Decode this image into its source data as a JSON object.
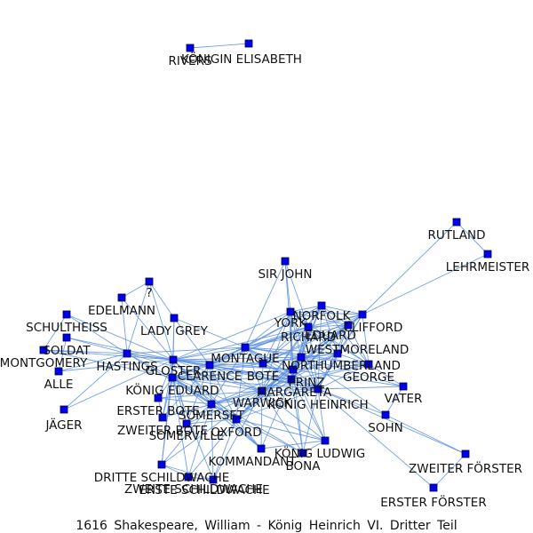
{
  "caption": "1616 Shakespeare, William - König Heinrich VI. Dritter Teil",
  "colors": {
    "edge": "#5b8fe0",
    "node": "#0000ee",
    "text": "#111111"
  },
  "nodes": [
    {
      "id": "RIVERS",
      "label": "RIVERS"
    },
    {
      "id": "KOENIGIN_ELISABETH",
      "label": "KÖNIGIN ELISABETH"
    },
    {
      "id": "RUTLAND",
      "label": "RUTLAND"
    },
    {
      "id": "LEHRMEISTER",
      "label": "LEHRMEISTER"
    },
    {
      "id": "SIR_JOHN",
      "label": "SIR JOHN"
    },
    {
      "id": "Q",
      "label": "?"
    },
    {
      "id": "EDELMANN",
      "label": "EDELMANN"
    },
    {
      "id": "SCHULTHEISS",
      "label": "SCHULTHEISS"
    },
    {
      "id": "LADY_GREY",
      "label": "LADY GREY"
    },
    {
      "id": "SOLDAT",
      "label": "SOLDAT"
    },
    {
      "id": "MONTGOMERY",
      "label": "MONTGOMERY"
    },
    {
      "id": "ALLE",
      "label": "ALLE"
    },
    {
      "id": "HASTINGS",
      "label": "HASTINGS"
    },
    {
      "id": "GLOSTER",
      "label": "GLOSTER"
    },
    {
      "id": "CLARENCE",
      "label": "CLARENCE"
    },
    {
      "id": "MONTAGUE",
      "label": "MONTAGUE"
    },
    {
      "id": "BOTE",
      "label": "BOTE"
    },
    {
      "id": "KOENIG_EDUARD",
      "label": "KÖNIG EDUARD"
    },
    {
      "id": "ERSTER_BOTE",
      "label": "ERSTER BOTE"
    },
    {
      "id": "ZWEITER_BOTE",
      "label": "ZWEITER BOTE"
    },
    {
      "id": "SOMERSET",
      "label": "SOMERSET"
    },
    {
      "id": "SOMERVILLE",
      "label": "SOMERVILLE"
    },
    {
      "id": "OXFORD",
      "label": "OXFORD"
    },
    {
      "id": "WARWICK",
      "label": "WARWICK"
    },
    {
      "id": "MARGARETA",
      "label": "MARGARETA"
    },
    {
      "id": "KOENIG_HEINRICH",
      "label": "KÖNIG HEINRICH"
    },
    {
      "id": "PRINZ",
      "label": "PRINZ"
    },
    {
      "id": "NORTHUMBERLAND",
      "label": "NORTHUMBERLAND"
    },
    {
      "id": "WESTMORELAND",
      "label": "WESTMORELAND"
    },
    {
      "id": "GEORGE",
      "label": "GEORGE"
    },
    {
      "id": "VATER",
      "label": "VATER"
    },
    {
      "id": "SOHN",
      "label": "SOHN"
    },
    {
      "id": "YORK",
      "label": "YORK"
    },
    {
      "id": "NORFOLK",
      "label": "NORFOLK"
    },
    {
      "id": "RICHARD",
      "label": "RICHARD"
    },
    {
      "id": "EDUARD",
      "label": "EDUARD"
    },
    {
      "id": "CLIFFORD",
      "label": "CLIFFORD"
    },
    {
      "id": "KOENIG_LUDWIG",
      "label": "KÖNIG LUDWIG"
    },
    {
      "id": "BONA",
      "label": "BONA"
    },
    {
      "id": "KOMMANDANT",
      "label": "KOMMANDANT"
    },
    {
      "id": "DRITTE_SCHILDWACHE",
      "label": "DRITTE SCHILDWACHE"
    },
    {
      "id": "ZWEITE_SCHILDWACHE",
      "label": "ZWEITE SCHILDWACHE"
    },
    {
      "id": "ERSTE_SCHILDWACHE",
      "label": "ERSTE SCHILDWACHE"
    },
    {
      "id": "JAEGER",
      "label": "JÄGER"
    },
    {
      "id": "ZWEITER_FOERSTER",
      "label": "ZWEITER FÖRSTER"
    },
    {
      "id": "ERSTER_FOERSTER",
      "label": "ERSTER FÖRSTER"
    }
  ],
  "edges": [
    [
      "RIVERS",
      "KOENIGIN_ELISABETH"
    ],
    [
      "RUTLAND",
      "LEHRMEISTER"
    ],
    [
      "RUTLAND",
      "CLIFFORD"
    ],
    [
      "LEHRMEISTER",
      "CLIFFORD"
    ],
    [
      "SIR_JOHN",
      "YORK"
    ],
    [
      "SIR_JOHN",
      "MONTAGUE"
    ],
    [
      "SIR_JOHN",
      "RICHARD"
    ],
    [
      "SIR_JOHN",
      "PRINZ"
    ],
    [
      "Q",
      "EDELMANN"
    ],
    [
      "Q",
      "LADY_GREY"
    ],
    [
      "Q",
      "HASTINGS"
    ],
    [
      "Q",
      "GLOSTER"
    ],
    [
      "EDELMANN",
      "GLOSTER"
    ],
    [
      "EDELMANN",
      "HASTINGS"
    ],
    [
      "SCHULTHEISS",
      "HASTINGS"
    ],
    [
      "SCHULTHEISS",
      "GLOSTER"
    ],
    [
      "SCHULTHEISS",
      "MONTGOMERY"
    ],
    [
      "LADY_GREY",
      "GLOSTER"
    ],
    [
      "LADY_GREY",
      "CLARENCE"
    ],
    [
      "LADY_GREY",
      "KOENIG_EDUARD"
    ],
    [
      "LADY_GREY",
      "MONTAGUE"
    ],
    [
      "SOLDAT",
      "HASTINGS"
    ],
    [
      "SOLDAT",
      "GLOSTER"
    ],
    [
      "SOLDAT",
      "ALLE"
    ],
    [
      "MONTGOMERY",
      "HASTINGS"
    ],
    [
      "MONTGOMERY",
      "GLOSTER"
    ],
    [
      "MONTGOMERY",
      "KOENIG_EDUARD"
    ],
    [
      "ALLE",
      "GLOSTER"
    ],
    [
      "ALLE",
      "HASTINGS"
    ],
    [
      "JAEGER",
      "HASTINGS"
    ],
    [
      "JAEGER",
      "GLOSTER"
    ],
    [
      "HASTINGS",
      "GLOSTER"
    ],
    [
      "HASTINGS",
      "CLARENCE"
    ],
    [
      "HASTINGS",
      "KOENIG_EDUARD"
    ],
    [
      "HASTINGS",
      "MONTAGUE"
    ],
    [
      "HASTINGS",
      "WARWICK"
    ],
    [
      "HASTINGS",
      "SOMERSET"
    ],
    [
      "GLOSTER",
      "CLARENCE"
    ],
    [
      "GLOSTER",
      "KOENIG_EDUARD"
    ],
    [
      "GLOSTER",
      "MONTAGUE"
    ],
    [
      "GLOSTER",
      "BOTE"
    ],
    [
      "GLOSTER",
      "WARWICK"
    ],
    [
      "GLOSTER",
      "MARGARETA"
    ],
    [
      "GLOSTER",
      "OXFORD"
    ],
    [
      "GLOSTER",
      "SOMERSET"
    ],
    [
      "GLOSTER",
      "PRINZ"
    ],
    [
      "GLOSTER",
      "KOENIG_HEINRICH"
    ],
    [
      "GLOSTER",
      "RICHARD"
    ],
    [
      "GLOSTER",
      "YORK"
    ],
    [
      "GLOSTER",
      "NORTHUMBERLAND"
    ],
    [
      "GLOSTER",
      "ZWEITER_BOTE"
    ],
    [
      "GLOSTER",
      "ERSTER_BOTE"
    ],
    [
      "GLOSTER",
      "SOMERVILLE"
    ],
    [
      "GLOSTER",
      "KOMMANDANT"
    ],
    [
      "CLARENCE",
      "KOENIG_EDUARD"
    ],
    [
      "CLARENCE",
      "MONTAGUE"
    ],
    [
      "CLARENCE",
      "WARWICK"
    ],
    [
      "CLARENCE",
      "MARGARETA"
    ],
    [
      "CLARENCE",
      "OXFORD"
    ],
    [
      "CLARENCE",
      "SOMERSET"
    ],
    [
      "CLARENCE",
      "PRINZ"
    ],
    [
      "CLARENCE",
      "BOTE"
    ],
    [
      "CLARENCE",
      "KOENIG_HEINRICH"
    ],
    [
      "CLARENCE",
      "RICHARD"
    ],
    [
      "CLARENCE",
      "NORFOLK"
    ],
    [
      "CLARENCE",
      "SOMERVILLE"
    ],
    [
      "CLARENCE",
      "ZWEITER_BOTE"
    ],
    [
      "MONTAGUE",
      "KOENIG_EDUARD"
    ],
    [
      "MONTAGUE",
      "WARWICK"
    ],
    [
      "MONTAGUE",
      "YORK"
    ],
    [
      "MONTAGUE",
      "NORFOLK"
    ],
    [
      "MONTAGUE",
      "RICHARD"
    ],
    [
      "MONTAGUE",
      "EDUARD"
    ],
    [
      "MONTAGUE",
      "CLIFFORD"
    ],
    [
      "MONTAGUE",
      "NORTHUMBERLAND"
    ],
    [
      "MONTAGUE",
      "WESTMORELAND"
    ],
    [
      "MONTAGUE",
      "BOTE"
    ],
    [
      "MONTAGUE",
      "KOENIG_HEINRICH"
    ],
    [
      "MONTAGUE",
      "MARGARETA"
    ],
    [
      "MONTAGUE",
      "OXFORD"
    ],
    [
      "MONTAGUE",
      "PRINZ"
    ],
    [
      "MONTAGUE",
      "SOMERSET"
    ],
    [
      "MONTAGUE",
      "GEORGE"
    ],
    [
      "BOTE",
      "YORK"
    ],
    [
      "BOTE",
      "RICHARD"
    ],
    [
      "BOTE",
      "EDUARD"
    ],
    [
      "BOTE",
      "WARWICK"
    ],
    [
      "BOTE",
      "KOENIG_EDUARD"
    ],
    [
      "BOTE",
      "NORTHUMBERLAND"
    ],
    [
      "BOTE",
      "MARGARETA"
    ],
    [
      "BOTE",
      "KOENIG_HEINRICH"
    ],
    [
      "BOTE",
      "CLIFFORD"
    ],
    [
      "BOTE",
      "NORFOLK"
    ],
    [
      "BOTE",
      "WESTMORELAND"
    ],
    [
      "KOENIG_EDUARD",
      "WARWICK"
    ],
    [
      "KOENIG_EDUARD",
      "MARGARETA"
    ],
    [
      "KOENIG_EDUARD",
      "OXFORD"
    ],
    [
      "KOENIG_EDUARD",
      "SOMERSET"
    ],
    [
      "KOENIG_EDUARD",
      "PRINZ"
    ],
    [
      "KOENIG_EDUARD",
      "KOENIG_HEINRICH"
    ],
    [
      "KOENIG_EDUARD",
      "RICHARD"
    ],
    [
      "KOENIG_EDUARD",
      "ERSTER_BOTE"
    ],
    [
      "KOENIG_EDUARD",
      "ZWEITER_BOTE"
    ],
    [
      "KOENIG_EDUARD",
      "SOMERVILLE"
    ],
    [
      "KOENIG_EDUARD",
      "KOMMANDANT"
    ],
    [
      "KOENIG_EDUARD",
      "DRITTE_SCHILDWACHE"
    ],
    [
      "KOENIG_EDUARD",
      "ZWEITE_SCHILDWACHE"
    ],
    [
      "KOENIG_EDUARD",
      "ERSTE_SCHILDWACHE"
    ],
    [
      "KOENIG_EDUARD",
      "KOENIG_LUDWIG"
    ],
    [
      "KOENIG_EDUARD",
      "BONA"
    ],
    [
      "ERSTER_BOTE",
      "WARWICK"
    ],
    [
      "ERSTER_BOTE",
      "ZWEITER_BOTE"
    ],
    [
      "ERSTER_BOTE",
      "SOMERSET"
    ],
    [
      "ZWEITER_BOTE",
      "WARWICK"
    ],
    [
      "ZWEITER_BOTE",
      "SOMERSET"
    ],
    [
      "SOMERSET",
      "WARWICK"
    ],
    [
      "SOMERSET",
      "OXFORD"
    ],
    [
      "SOMERSET",
      "MARGARETA"
    ],
    [
      "SOMERSET",
      "SOMERVILLE"
    ],
    [
      "SOMERSET",
      "KOENIG_HEINRICH"
    ],
    [
      "SOMERSET",
      "DRITTE_SCHILDWACHE"
    ],
    [
      "SOMERSET",
      "ZWEITE_SCHILDWACHE"
    ],
    [
      "SOMERSET",
      "ERSTE_SCHILDWACHE"
    ],
    [
      "SOMERSET",
      "PRINZ"
    ],
    [
      "SOMERVILLE",
      "WARWICK"
    ],
    [
      "SOMERVILLE",
      "OXFORD"
    ],
    [
      "OXFORD",
      "WARWICK"
    ],
    [
      "OXFORD",
      "MARGARETA"
    ],
    [
      "OXFORD",
      "KOENIG_HEINRICH"
    ],
    [
      "OXFORD",
      "PRINZ"
    ],
    [
      "OXFORD",
      "KOENIG_LUDWIG"
    ],
    [
      "OXFORD",
      "BONA"
    ],
    [
      "OXFORD",
      "KOMMANDANT"
    ],
    [
      "OXFORD",
      "NORTHUMBERLAND"
    ],
    [
      "WARWICK",
      "MARGARETA"
    ],
    [
      "WARWICK",
      "KOENIG_HEINRICH"
    ],
    [
      "WARWICK",
      "PRINZ"
    ],
    [
      "WARWICK",
      "YORK"
    ],
    [
      "WARWICK",
      "RICHARD"
    ],
    [
      "WARWICK",
      "EDUARD"
    ],
    [
      "WARWICK",
      "NORFOLK"
    ],
    [
      "WARWICK",
      "CLIFFORD"
    ],
    [
      "WARWICK",
      "NORTHUMBERLAND"
    ],
    [
      "WARWICK",
      "WESTMORELAND"
    ],
    [
      "WARWICK",
      "KOENIG_LUDWIG"
    ],
    [
      "WARWICK",
      "BONA"
    ],
    [
      "WARWICK",
      "KOMMANDANT"
    ],
    [
      "WARWICK",
      "DRITTE_SCHILDWACHE"
    ],
    [
      "WARWICK",
      "ZWEITE_SCHILDWACHE"
    ],
    [
      "WARWICK",
      "ERSTE_SCHILDWACHE"
    ],
    [
      "WARWICK",
      "GEORGE"
    ],
    [
      "MARGARETA",
      "KOENIG_HEINRICH"
    ],
    [
      "MARGARETA",
      "PRINZ"
    ],
    [
      "MARGARETA",
      "YORK"
    ],
    [
      "MARGARETA",
      "RICHARD"
    ],
    [
      "MARGARETA",
      "EDUARD"
    ],
    [
      "MARGARETA",
      "CLIFFORD"
    ],
    [
      "MARGARETA",
      "NORTHUMBERLAND"
    ],
    [
      "MARGARETA",
      "WESTMORELAND"
    ],
    [
      "MARGARETA",
      "KOENIG_LUDWIG"
    ],
    [
      "MARGARETA",
      "BONA"
    ],
    [
      "MARGARETA",
      "GEORGE"
    ],
    [
      "MARGARETA",
      "NORFOLK"
    ],
    [
      "KOENIG_HEINRICH",
      "PRINZ"
    ],
    [
      "KOENIG_HEINRICH",
      "YORK"
    ],
    [
      "KOENIG_HEINRICH",
      "RICHARD"
    ],
    [
      "KOENIG_HEINRICH",
      "EDUARD"
    ],
    [
      "KOENIG_HEINRICH",
      "CLIFFORD"
    ],
    [
      "KOENIG_HEINRICH",
      "NORTHUMBERLAND"
    ],
    [
      "KOENIG_HEINRICH",
      "WESTMORELAND"
    ],
    [
      "KOENIG_HEINRICH",
      "VATER"
    ],
    [
      "KOENIG_HEINRICH",
      "SOHN"
    ],
    [
      "KOENIG_HEINRICH",
      "ZWEITER_FOERSTER"
    ],
    [
      "KOENIG_HEINRICH",
      "ERSTER_FOERSTER"
    ],
    [
      "KOENIG_HEINRICH",
      "NORFOLK"
    ],
    [
      "KOENIG_HEINRICH",
      "GEORGE"
    ],
    [
      "PRINZ",
      "YORK"
    ],
    [
      "PRINZ",
      "RICHARD"
    ],
    [
      "PRINZ",
      "EDUARD"
    ],
    [
      "PRINZ",
      "CLIFFORD"
    ],
    [
      "PRINZ",
      "NORTHUMBERLAND"
    ],
    [
      "PRINZ",
      "WESTMORELAND"
    ],
    [
      "PRINZ",
      "NORFOLK"
    ],
    [
      "PRINZ",
      "GEORGE"
    ],
    [
      "PRINZ",
      "VATER"
    ],
    [
      "NORTHUMBERLAND",
      "YORK"
    ],
    [
      "NORTHUMBERLAND",
      "RICHARD"
    ],
    [
      "NORTHUMBERLAND",
      "EDUARD"
    ],
    [
      "NORTHUMBERLAND",
      "CLIFFORD"
    ],
    [
      "NORTHUMBERLAND",
      "WESTMORELAND"
    ],
    [
      "NORTHUMBERLAND",
      "NORFOLK"
    ],
    [
      "NORTHUMBERLAND",
      "GEORGE"
    ],
    [
      "NORTHUMBERLAND",
      "VATER"
    ],
    [
      "NORTHUMBERLAND",
      "SOHN"
    ],
    [
      "WESTMORELAND",
      "YORK"
    ],
    [
      "WESTMORELAND",
      "RICHARD"
    ],
    [
      "WESTMORELAND",
      "EDUARD"
    ],
    [
      "WESTMORELAND",
      "CLIFFORD"
    ],
    [
      "WESTMORELAND",
      "NORFOLK"
    ],
    [
      "WESTMORELAND",
      "GEORGE"
    ],
    [
      "GEORGE",
      "YORK"
    ],
    [
      "GEORGE",
      "RICHARD"
    ],
    [
      "GEORGE",
      "EDUARD"
    ],
    [
      "GEORGE",
      "CLIFFORD"
    ],
    [
      "GEORGE",
      "NORFOLK"
    ],
    [
      "VATER",
      "SOHN"
    ],
    [
      "VATER",
      "GEORGE"
    ],
    [
      "YORK",
      "NORFOLK"
    ],
    [
      "YORK",
      "RICHARD"
    ],
    [
      "YORK",
      "EDUARD"
    ],
    [
      "YORK",
      "CLIFFORD"
    ],
    [
      "NORFOLK",
      "RICHARD"
    ],
    [
      "NORFOLK",
      "EDUARD"
    ],
    [
      "NORFOLK",
      "CLIFFORD"
    ],
    [
      "RICHARD",
      "EDUARD"
    ],
    [
      "RICHARD",
      "CLIFFORD"
    ],
    [
      "EDUARD",
      "CLIFFORD"
    ],
    [
      "KOENIG_LUDWIG",
      "BONA"
    ],
    [
      "KOENIG_LUDWIG",
      "KOMMANDANT"
    ],
    [
      "KOENIG_LUDWIG",
      "KOENIG_HEINRICH"
    ],
    [
      "KOENIG_LUDWIG",
      "PRINZ"
    ],
    [
      "BONA",
      "KOENIG_HEINRICH"
    ],
    [
      "BONA",
      "PRINZ"
    ],
    [
      "KOMMANDANT",
      "SOMERSET"
    ],
    [
      "KOMMANDANT",
      "MARGARETA"
    ],
    [
      "DRITTE_SCHILDWACHE",
      "ZWEITE_SCHILDWACHE"
    ],
    [
      "DRITTE_SCHILDWACHE",
      "ERSTE_SCHILDWACHE"
    ],
    [
      "ZWEITE_SCHILDWACHE",
      "ERSTE_SCHILDWACHE"
    ],
    [
      "DRITTE_SCHILDWACHE",
      "GLOSTER"
    ],
    [
      "ERSTE_SCHILDWACHE",
      "OXFORD"
    ],
    [
      "ZWEITER_FOERSTER",
      "ERSTER_FOERSTER"
    ],
    [
      "ZWEITER_FOERSTER",
      "SOHN"
    ]
  ]
}
